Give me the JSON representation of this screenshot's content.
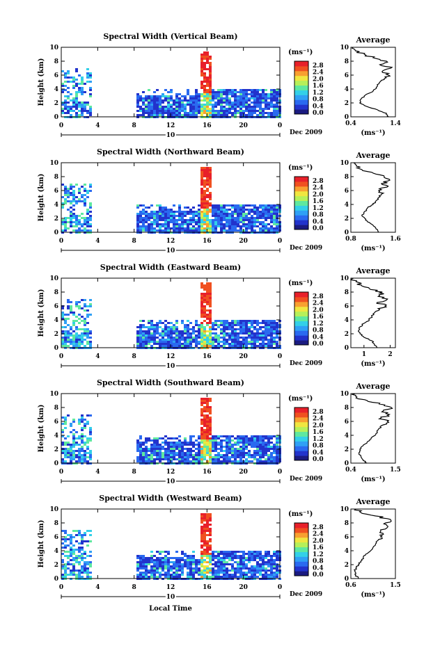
{
  "figure": {
    "xlabel_common": "Local Time",
    "date_label": "Dec 2009",
    "day_label": "10",
    "avg_title": "Average",
    "unit_label": "(ms⁻¹)",
    "colorbar_ticks": [
      "2.8",
      "2.4",
      "2.0",
      "1.6",
      "1.2",
      "0.8",
      "0.4",
      "0.0"
    ],
    "colormap": [
      "#1b1b80",
      "#2233cc",
      "#2a6af0",
      "#2fa0f5",
      "#33d0e8",
      "#5ee8a0",
      "#b6f05a",
      "#f0e640",
      "#f8a030",
      "#f05020",
      "#e8202a"
    ]
  },
  "chart_data": [
    {
      "type": "heatmap",
      "title": "Spectral Width (Vertical Beam)",
      "ylabel": "Height (km)",
      "x_ticks": [
        "0",
        "4",
        "8",
        "12",
        "16",
        "20",
        "0"
      ],
      "y_ticks": [
        "10",
        "8",
        "6",
        "4",
        "2",
        "0"
      ],
      "xlim": [
        0,
        24
      ],
      "ylim": [
        0,
        10
      ],
      "avg_x_ticks": [
        "0.4",
        "1.4"
      ],
      "avg_xlim": [
        0.4,
        1.4
      ],
      "profile": [
        [
          1.25,
          0
        ],
        [
          1.2,
          0.5
        ],
        [
          1.0,
          1
        ],
        [
          0.75,
          1.5
        ],
        [
          0.6,
          2
        ],
        [
          0.62,
          2.5
        ],
        [
          0.7,
          3
        ],
        [
          0.85,
          3.5
        ],
        [
          0.95,
          4
        ],
        [
          1.0,
          4.5
        ],
        [
          1.05,
          5
        ],
        [
          1.15,
          5.5
        ],
        [
          1.25,
          6
        ],
        [
          1.1,
          6.5
        ],
        [
          1.3,
          7
        ],
        [
          1.05,
          7.5
        ],
        [
          1.2,
          8
        ],
        [
          0.9,
          8.5
        ],
        [
          0.7,
          9
        ],
        [
          0.5,
          9.5
        ],
        [
          0.45,
          10
        ]
      ]
    },
    {
      "type": "heatmap",
      "title": "Spectral Width (Northward Beam)",
      "ylabel": "Height (km)",
      "x_ticks": [
        "0",
        "4",
        "8",
        "12",
        "16",
        "20",
        "0"
      ],
      "y_ticks": [
        "10",
        "8",
        "6",
        "4",
        "2",
        "0"
      ],
      "xlim": [
        0,
        24
      ],
      "ylim": [
        0,
        10
      ],
      "avg_x_ticks": [
        "0.8",
        "1.6"
      ],
      "avg_xlim": [
        0.8,
        1.6
      ],
      "profile": [
        [
          1.3,
          0
        ],
        [
          1.25,
          0.5
        ],
        [
          1.2,
          1
        ],
        [
          1.1,
          1.5
        ],
        [
          1.05,
          2
        ],
        [
          1.0,
          2.5
        ],
        [
          1.05,
          3
        ],
        [
          1.1,
          3.5
        ],
        [
          1.2,
          4
        ],
        [
          1.25,
          4.5
        ],
        [
          1.3,
          5
        ],
        [
          1.35,
          5.5
        ],
        [
          1.3,
          6
        ],
        [
          1.45,
          6.5
        ],
        [
          1.35,
          7
        ],
        [
          1.5,
          7.5
        ],
        [
          1.4,
          8
        ],
        [
          1.2,
          8.5
        ],
        [
          1.0,
          9
        ],
        [
          0.9,
          9.5
        ],
        [
          0.85,
          10
        ]
      ]
    },
    {
      "type": "heatmap",
      "title": "Spectral Width (Eastward Beam)",
      "ylabel": "Height (km)",
      "x_ticks": [
        "0",
        "4",
        "8",
        "12",
        "16",
        "20",
        "0"
      ],
      "y_ticks": [
        "10",
        "8",
        "6",
        "4",
        "2",
        "0"
      ],
      "xlim": [
        0,
        24
      ],
      "ylim": [
        0,
        10
      ],
      "avg_x_ticks": [
        "1",
        "2"
      ],
      "avg_xlim": [
        0.5,
        2.2
      ],
      "profile": [
        [
          1.5,
          0
        ],
        [
          1.4,
          0.5
        ],
        [
          1.3,
          1
        ],
        [
          1.0,
          1.5
        ],
        [
          0.85,
          2
        ],
        [
          0.8,
          2.5
        ],
        [
          0.85,
          3
        ],
        [
          1.0,
          3.5
        ],
        [
          1.2,
          4
        ],
        [
          1.3,
          4.5
        ],
        [
          1.4,
          5
        ],
        [
          1.6,
          5.5
        ],
        [
          1.8,
          6
        ],
        [
          1.5,
          6.5
        ],
        [
          1.9,
          7
        ],
        [
          1.6,
          7.5
        ],
        [
          1.7,
          8
        ],
        [
          1.2,
          8.5
        ],
        [
          0.9,
          9
        ],
        [
          0.7,
          9.5
        ],
        [
          0.6,
          10
        ]
      ]
    },
    {
      "type": "heatmap",
      "title": "Spectral Width (Southward Beam)",
      "ylabel": "Height (km)",
      "x_ticks": [
        "0",
        "4",
        "8",
        "12",
        "16",
        "20",
        "0"
      ],
      "y_ticks": [
        "10",
        "8",
        "6",
        "4",
        "2",
        "0"
      ],
      "xlim": [
        0,
        24
      ],
      "ylim": [
        0,
        10
      ],
      "avg_x_ticks": [
        "0.4",
        "1.5"
      ],
      "avg_xlim": [
        0.4,
        1.5
      ],
      "profile": [
        [
          0.8,
          0
        ],
        [
          0.7,
          0.5
        ],
        [
          0.65,
          1
        ],
        [
          0.6,
          1.5
        ],
        [
          0.62,
          2
        ],
        [
          0.7,
          2.5
        ],
        [
          0.8,
          3
        ],
        [
          0.9,
          3.5
        ],
        [
          1.0,
          4
        ],
        [
          1.05,
          4.5
        ],
        [
          1.1,
          5
        ],
        [
          1.2,
          5.5
        ],
        [
          1.3,
          6
        ],
        [
          1.15,
          6.5
        ],
        [
          1.35,
          7
        ],
        [
          1.2,
          7.5
        ],
        [
          1.4,
          8
        ],
        [
          1.1,
          8.5
        ],
        [
          0.8,
          9
        ],
        [
          0.55,
          9.5
        ],
        [
          0.5,
          10
        ]
      ]
    },
    {
      "type": "heatmap",
      "title": "Spectral Width (Westward Beam)",
      "ylabel": "Height (km)",
      "x_ticks": [
        "0",
        "4",
        "8",
        "12",
        "16",
        "20",
        "0"
      ],
      "y_ticks": [
        "10",
        "8",
        "6",
        "4",
        "2",
        "0"
      ],
      "xlim": [
        0,
        24
      ],
      "ylim": [
        0,
        10
      ],
      "avg_x_ticks": [
        "0.6",
        "1.5"
      ],
      "avg_xlim": [
        0.6,
        1.5
      ],
      "profile": [
        [
          0.75,
          0
        ],
        [
          0.7,
          0.5
        ],
        [
          0.68,
          1
        ],
        [
          0.7,
          1.5
        ],
        [
          0.75,
          2
        ],
        [
          0.8,
          2.5
        ],
        [
          0.85,
          3
        ],
        [
          0.9,
          3.5
        ],
        [
          1.0,
          4
        ],
        [
          1.05,
          4.5
        ],
        [
          1.1,
          5
        ],
        [
          1.15,
          5.5
        ],
        [
          1.2,
          6
        ],
        [
          1.25,
          6.5
        ],
        [
          1.2,
          7
        ],
        [
          1.35,
          7.5
        ],
        [
          1.3,
          8
        ],
        [
          1.4,
          8.5
        ],
        [
          1.1,
          9
        ],
        [
          0.8,
          9.5
        ],
        [
          0.7,
          10
        ]
      ]
    }
  ]
}
